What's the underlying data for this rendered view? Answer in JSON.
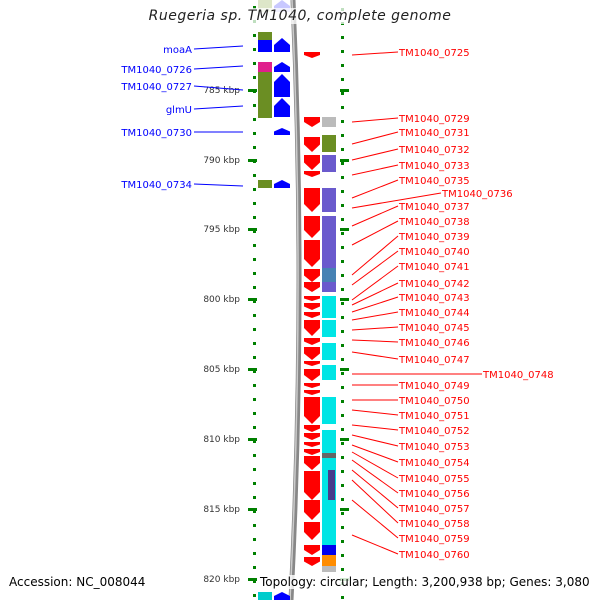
{
  "title": "Ruegeria sp. TM1040, complete genome",
  "footer": {
    "accession": "Accession: NC_008044",
    "summary": "Topology: circular; Length: 3,200,938 bp; Genes: 3,080"
  },
  "axis_ticks": [
    "785 kbp",
    "790 kbp",
    "795 kbp",
    "800 kbp",
    "805 kbp",
    "810 kbp",
    "815 kbp",
    "820 kbp"
  ],
  "left_genes": [
    "moaA",
    "TM1040_0726",
    "TM1040_0727",
    "glmU",
    "TM1040_0730",
    "TM1040_0734"
  ],
  "right_genes": [
    "TM1040_0725",
    "TM1040_0729",
    "TM1040_0731",
    "TM1040_0732",
    "TM1040_0733",
    "TM1040_0735",
    "TM1040_0736",
    "TM1040_0737",
    "TM1040_0738",
    "TM1040_0739",
    "TM1040_0740",
    "TM1040_0741",
    "TM1040_0742",
    "TM1040_0743",
    "TM1040_0744",
    "TM1040_0745",
    "TM1040_0746",
    "TM1040_0747",
    "TM1040_0748",
    "TM1040_0749",
    "TM1040_0750",
    "TM1040_0751",
    "TM1040_0752",
    "TM1040_0753",
    "TM1040_0754",
    "TM1040_0755",
    "TM1040_0756",
    "TM1040_0757",
    "TM1040_0758",
    "TM1040_0759",
    "TM1040_0760"
  ],
  "colors": {
    "forward": "#0000ff",
    "reverse": "#ff0000",
    "axis": "#008000"
  }
}
